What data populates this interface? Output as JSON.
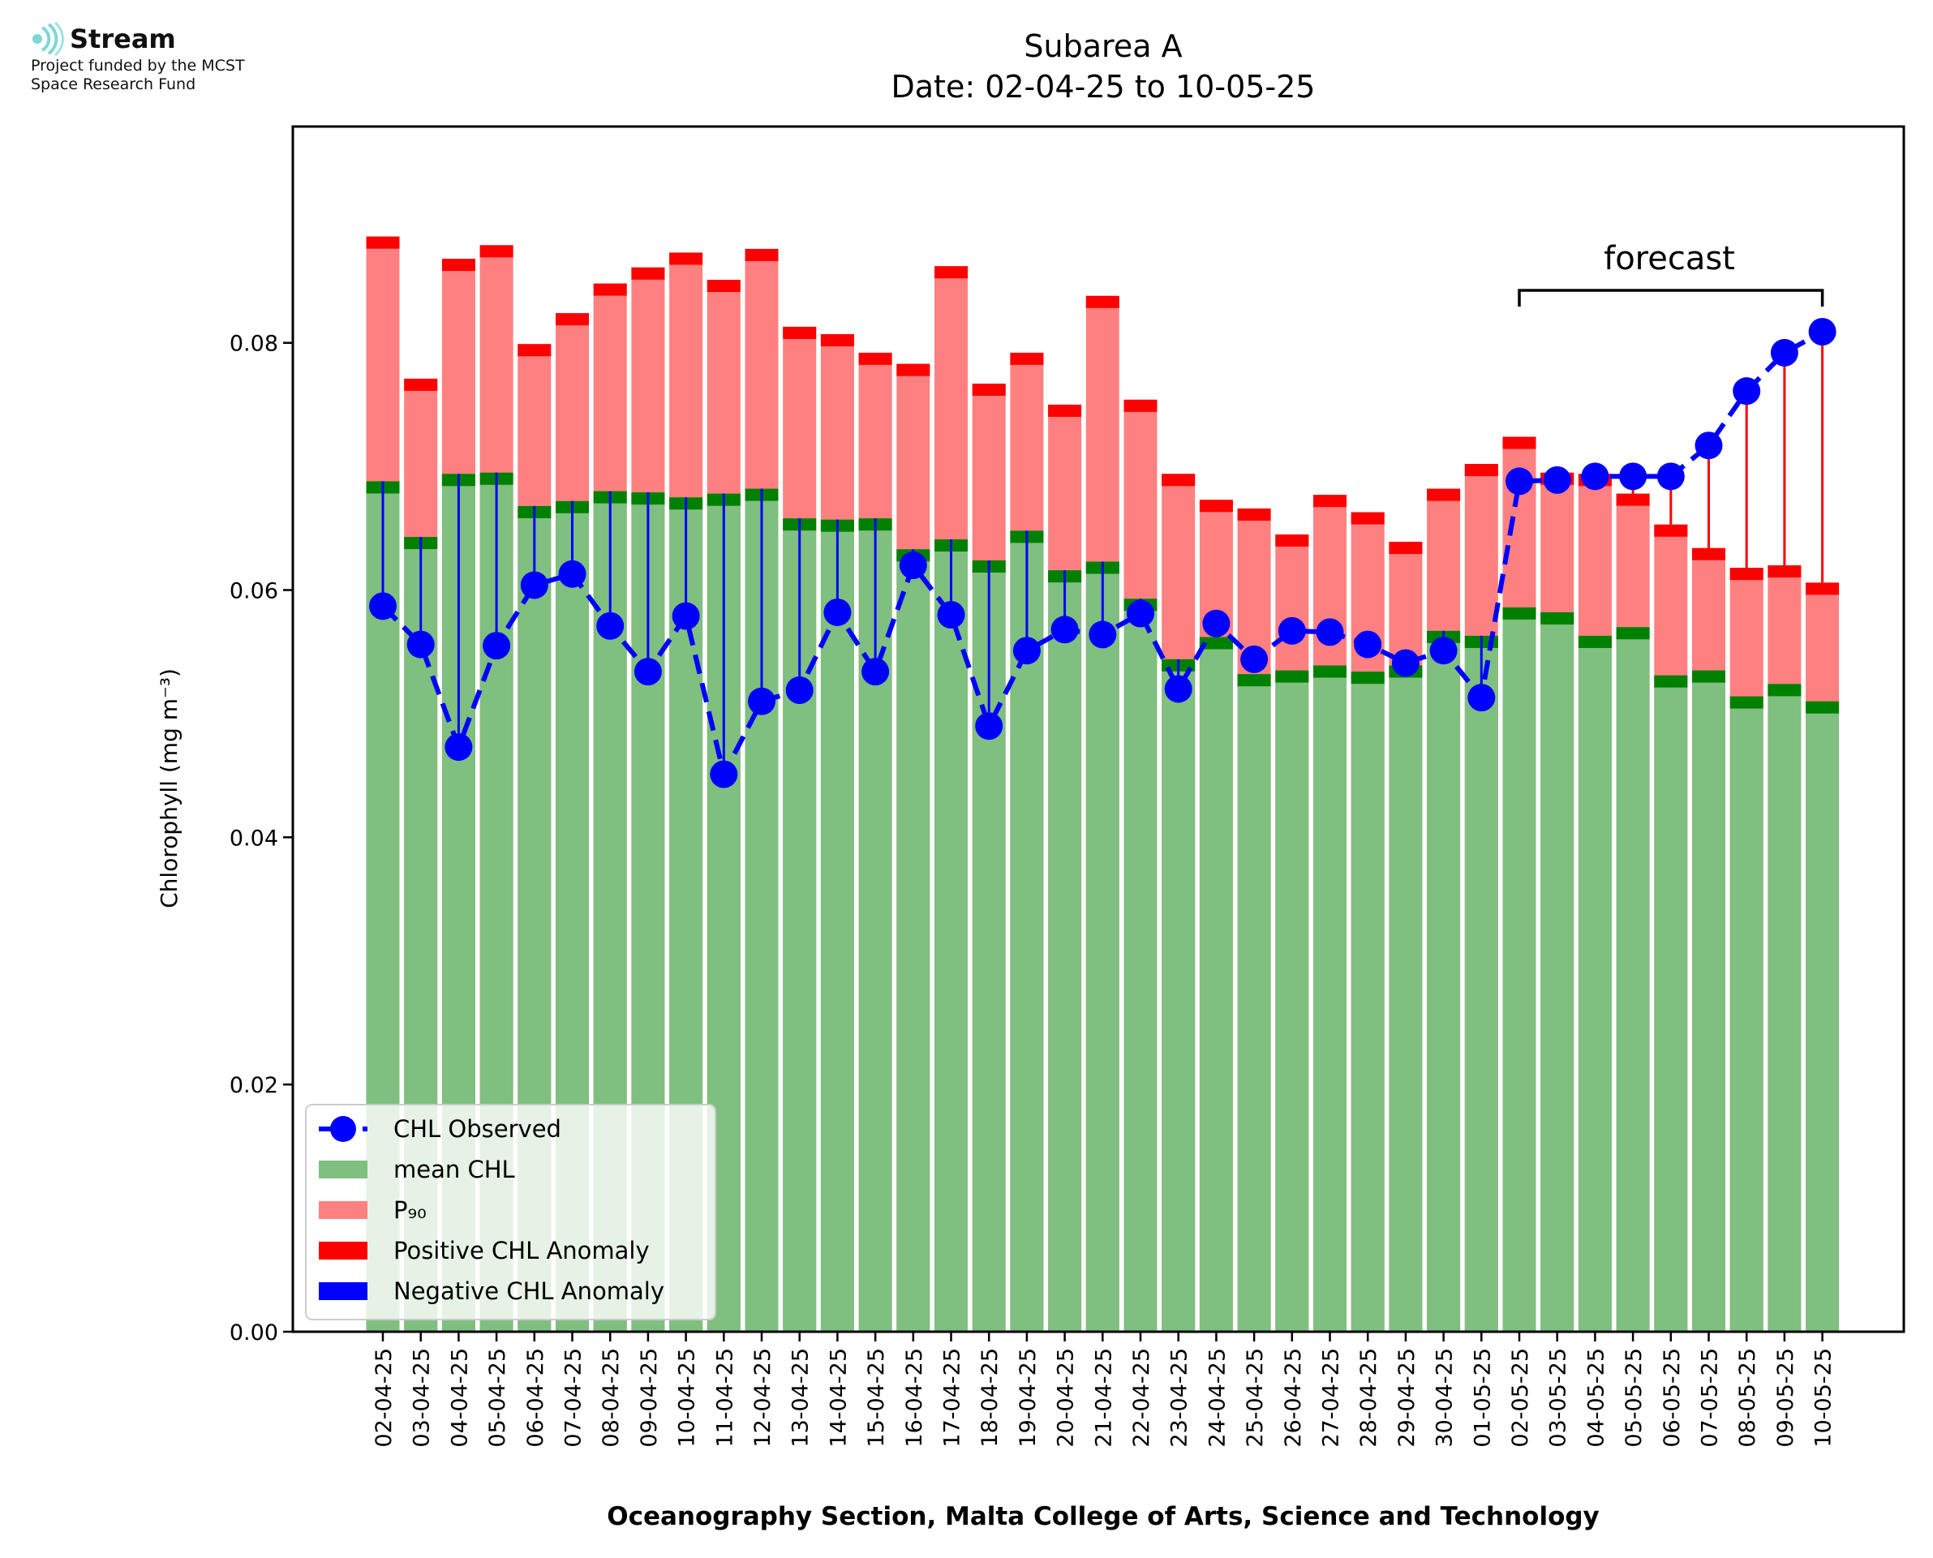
{
  "branding": {
    "name": "Stream",
    "line1": "Project funded by the MCST",
    "line2": "Space Research Fund"
  },
  "chart_data": {
    "type": "bar",
    "title": "Subarea A",
    "subtitle": "Date: 02-04-25 to 10-05-25",
    "xlabel": "Oceanography Section, Malta College of Arts, Science and Technology",
    "ylabel": "Chlorophyll (mg m⁻³)",
    "ylim": [
      0,
      0.0975
    ],
    "yticks": [
      "0.00",
      "0.02",
      "0.04",
      "0.06",
      "0.08"
    ],
    "annotation": "forecast",
    "forecast_from": "02-05-25",
    "forecast_to": "10-05-25",
    "legend_position": "lower-left",
    "categories": [
      "02-04-25",
      "03-04-25",
      "04-04-25",
      "05-04-25",
      "06-04-25",
      "07-04-25",
      "08-04-25",
      "09-04-25",
      "10-04-25",
      "11-04-25",
      "12-04-25",
      "13-04-25",
      "14-04-25",
      "15-04-25",
      "16-04-25",
      "17-04-25",
      "18-04-25",
      "19-04-25",
      "20-04-25",
      "21-04-25",
      "22-04-25",
      "23-04-25",
      "24-04-25",
      "25-04-25",
      "26-04-25",
      "27-04-25",
      "28-04-25",
      "29-04-25",
      "30-04-25",
      "01-05-25",
      "02-05-25",
      "03-05-25",
      "04-05-25",
      "05-05-25",
      "06-05-25",
      "07-05-25",
      "08-05-25",
      "09-05-25",
      "10-05-25"
    ],
    "series": [
      {
        "name": "mean CHL",
        "color": "#7fbf7f",
        "edge_color": "#008000",
        "values": [
          0.0688,
          0.0643,
          0.0694,
          0.0695,
          0.0668,
          0.0672,
          0.068,
          0.0679,
          0.0675,
          0.0678,
          0.0682,
          0.0658,
          0.0657,
          0.0658,
          0.0633,
          0.0641,
          0.0624,
          0.0648,
          0.0616,
          0.0623,
          0.0593,
          0.0544,
          0.0562,
          0.0532,
          0.0535,
          0.0539,
          0.0534,
          0.0539,
          0.0567,
          0.0563,
          0.0586,
          0.0582,
          0.0563,
          0.057,
          0.0531,
          0.0535,
          0.0514,
          0.0524,
          0.051
        ]
      },
      {
        "name": "P₉₀",
        "color": "#ff8080",
        "edge_color": "#ff0000",
        "values": [
          0.0886,
          0.0771,
          0.0868,
          0.0879,
          0.0799,
          0.0824,
          0.0848,
          0.0861,
          0.0873,
          0.0851,
          0.0876,
          0.0813,
          0.0807,
          0.0792,
          0.0783,
          0.0862,
          0.0767,
          0.0792,
          0.075,
          0.0838,
          0.0754,
          0.0694,
          0.0673,
          0.0666,
          0.0645,
          0.0677,
          0.0663,
          0.0639,
          0.0682,
          0.0702,
          0.0724,
          0.0695,
          0.0694,
          0.0678,
          0.0653,
          0.0634,
          0.0618,
          0.062,
          0.0606
        ]
      },
      {
        "name": "CHL Observed",
        "color": "#0000ff",
        "values": [
          0.0587,
          0.0556,
          0.0473,
          0.0555,
          0.0604,
          0.0613,
          0.0571,
          0.0534,
          0.0579,
          0.0451,
          0.051,
          0.0519,
          0.0582,
          0.0534,
          0.062,
          0.058,
          0.049,
          0.0551,
          0.0568,
          0.0564,
          0.0581,
          0.052,
          0.0573,
          0.0544,
          0.0567,
          0.0566,
          0.0556,
          0.0541,
          0.0551,
          0.0513,
          0.0688,
          0.0689,
          0.0692,
          0.0692,
          0.0692,
          0.0717,
          0.0761,
          0.0792,
          0.0809
        ]
      }
    ],
    "legend": [
      {
        "label": "CHL Observed",
        "kind": "line-marker",
        "color": "#0000ff"
      },
      {
        "label": "mean CHL",
        "kind": "patch",
        "color": "#7fbf7f"
      },
      {
        "label": "P₉₀",
        "kind": "patch",
        "color": "#ff8080"
      },
      {
        "label": "Positive CHL Anomaly",
        "kind": "patch",
        "color": "#ff0000"
      },
      {
        "label": "Negative CHL Anomaly",
        "kind": "patch",
        "color": "#0000ff"
      }
    ]
  }
}
